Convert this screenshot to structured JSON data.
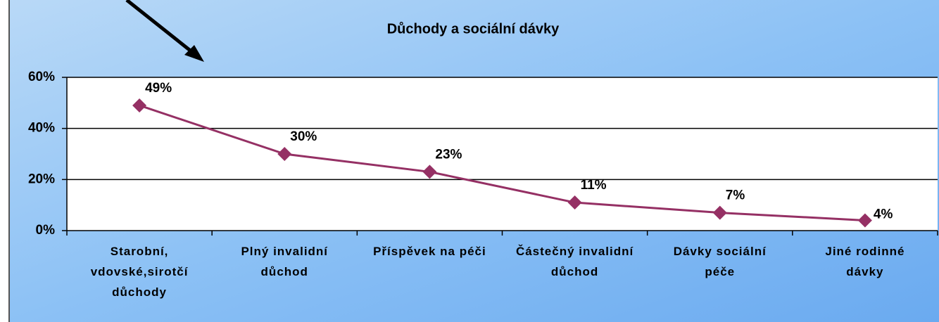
{
  "chart_data": {
    "type": "line",
    "title": "Důchody a sociální dávky",
    "categories": [
      "Starobní, vdovské,sirotčí důchody",
      "Plný invalidní důchod",
      "Příspěvek na péči",
      "Částečný invalidní důchod",
      "Dávky sociální péče",
      "Jiné rodinné dávky"
    ],
    "values": [
      49,
      30,
      23,
      11,
      7,
      4
    ],
    "value_labels": [
      "49%",
      "30%",
      "23%",
      "11%",
      "7%",
      "4%"
    ],
    "color": "#953064",
    "ylim": [
      0,
      60
    ],
    "yticks": [
      {
        "value": 0,
        "label": "0%"
      },
      {
        "value": 20,
        "label": "20%"
      },
      {
        "value": 40,
        "label": "40%"
      },
      {
        "value": 60,
        "label": "60%"
      }
    ],
    "grid": true
  }
}
